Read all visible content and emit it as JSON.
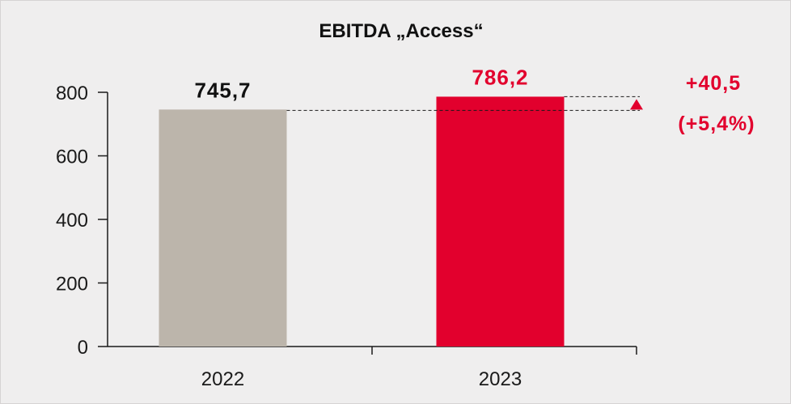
{
  "colors": {
    "background": "#efeeee",
    "bar_2022": "#bcb5ab",
    "bar_2023": "#e2002d",
    "accent": "#e2002d",
    "text": "#111111"
  },
  "chart_data": {
    "type": "bar",
    "title": "EBITDA „Access“",
    "categories": [
      "2022",
      "2023"
    ],
    "values": [
      745.7,
      786.2
    ],
    "value_labels": [
      "745,7",
      "786,2"
    ],
    "y_ticks": [
      "0",
      "200",
      "400",
      "600",
      "800"
    ],
    "ylim": [
      0,
      800
    ],
    "grid": false,
    "legend": "none",
    "annotation": {
      "delta_label": "+40,5",
      "delta_percent_label": "(+5,4%)"
    }
  }
}
